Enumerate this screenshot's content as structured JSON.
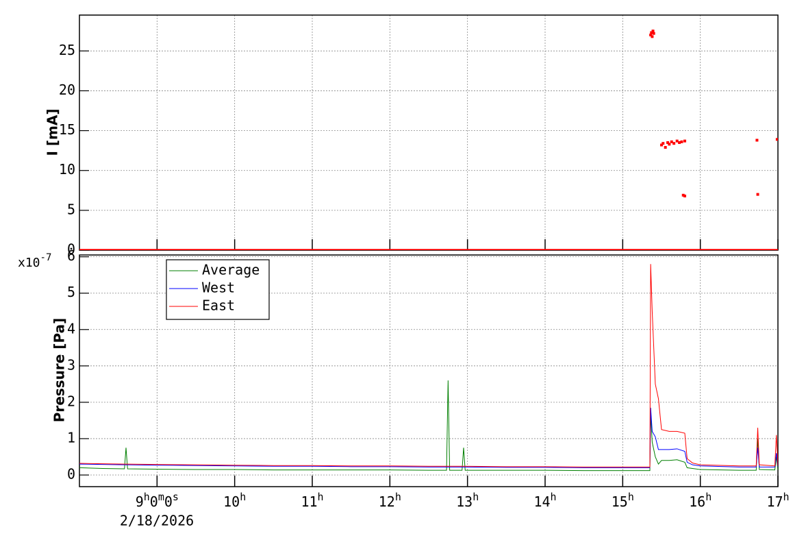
{
  "chart_data": [
    {
      "type": "scatter",
      "ylabel": "I [mA]",
      "xlim": [
        8,
        17
      ],
      "xticks": [
        9,
        10,
        11,
        12,
        13,
        14,
        15,
        16,
        17
      ],
      "ylim": [
        0,
        29.5
      ],
      "yticks": [
        0,
        5,
        10,
        15,
        20,
        25
      ],
      "grid": true,
      "series": [
        {
          "color": "#ff0000",
          "mode": "line",
          "x": [
            8,
            17
          ],
          "values": [
            0,
            0
          ]
        },
        {
          "color": "#ff0000",
          "mode": "markers",
          "x": [
            15.36,
            15.37,
            15.38,
            15.39,
            15.4,
            15.5,
            15.52,
            15.55,
            15.58,
            15.6,
            15.63,
            15.66,
            15.7,
            15.73,
            15.76,
            15.8,
            15.78,
            15.8,
            16.73,
            16.74,
            16.99
          ],
          "values": [
            27.0,
            27.3,
            26.8,
            27.5,
            27.2,
            13.2,
            13.4,
            12.9,
            13.5,
            13.3,
            13.6,
            13.4,
            13.7,
            13.5,
            13.6,
            13.7,
            6.9,
            6.8,
            13.8,
            7.0,
            13.9
          ]
        }
      ]
    },
    {
      "type": "line",
      "ylabel": "Pressure [Pa]",
      "y_multiplier": "x10-7",
      "date": "2/18/2026",
      "xlim": [
        8,
        17
      ],
      "xticks": [
        {
          "value": 9,
          "label": "9h0m0s"
        },
        {
          "value": 10,
          "label": "10h"
        },
        {
          "value": 11,
          "label": "11h"
        },
        {
          "value": 12,
          "label": "12h"
        },
        {
          "value": 13,
          "label": "13h"
        },
        {
          "value": 14,
          "label": "14h"
        },
        {
          "value": 15,
          "label": "15h"
        },
        {
          "value": 16,
          "label": "16h"
        },
        {
          "value": 17,
          "label": "17h"
        }
      ],
      "ylim": [
        -0.32,
        6.05
      ],
      "yticks": [
        0,
        1,
        2,
        3,
        4,
        5,
        6
      ],
      "grid": true,
      "legend": "upper left",
      "x": [
        8.0,
        8.3,
        8.58,
        8.6,
        8.62,
        9.0,
        9.5,
        10.0,
        10.5,
        11.0,
        11.5,
        12.0,
        12.5,
        12.73,
        12.75,
        12.77,
        12.93,
        12.95,
        12.97,
        13.5,
        14.0,
        14.5,
        15.0,
        15.35,
        15.36,
        15.38,
        15.42,
        15.46,
        15.5,
        15.6,
        15.7,
        15.8,
        15.83,
        15.9,
        16.0,
        16.5,
        16.72,
        16.74,
        16.76,
        16.96,
        16.98,
        17.0
      ],
      "series": [
        {
          "name": "Average",
          "color": "#007f00",
          "values": [
            0.2,
            0.18,
            0.17,
            0.75,
            0.17,
            0.16,
            0.15,
            0.15,
            0.14,
            0.14,
            0.14,
            0.14,
            0.13,
            0.13,
            2.6,
            0.13,
            0.13,
            0.75,
            0.13,
            0.13,
            0.13,
            0.12,
            0.12,
            0.12,
            1.7,
            0.9,
            0.5,
            0.3,
            0.4,
            0.4,
            0.42,
            0.35,
            0.2,
            0.18,
            0.15,
            0.13,
            0.13,
            1.0,
            0.15,
            0.14,
            0.5,
            0.14
          ]
        },
        {
          "name": "West",
          "color": "#0000ff",
          "values": [
            0.3,
            0.29,
            0.28,
            0.28,
            0.28,
            0.27,
            0.26,
            0.25,
            0.24,
            0.24,
            0.23,
            0.23,
            0.22,
            0.22,
            0.22,
            0.22,
            0.22,
            0.22,
            0.22,
            0.21,
            0.21,
            0.2,
            0.2,
            0.2,
            1.85,
            1.2,
            1.05,
            0.7,
            0.7,
            0.7,
            0.72,
            0.65,
            0.35,
            0.28,
            0.25,
            0.22,
            0.22,
            0.75,
            0.22,
            0.22,
            0.6,
            0.22
          ]
        },
        {
          "name": "East",
          "color": "#ff0000",
          "values": [
            0.32,
            0.31,
            0.3,
            0.3,
            0.3,
            0.29,
            0.28,
            0.27,
            0.26,
            0.26,
            0.25,
            0.25,
            0.24,
            0.24,
            0.24,
            0.24,
            0.24,
            0.24,
            0.24,
            0.23,
            0.23,
            0.22,
            0.22,
            0.22,
            5.8,
            4.5,
            2.5,
            2.1,
            1.25,
            1.2,
            1.2,
            1.15,
            0.45,
            0.33,
            0.28,
            0.25,
            0.25,
            1.3,
            0.28,
            0.25,
            1.1,
            0.25
          ]
        }
      ]
    }
  ]
}
